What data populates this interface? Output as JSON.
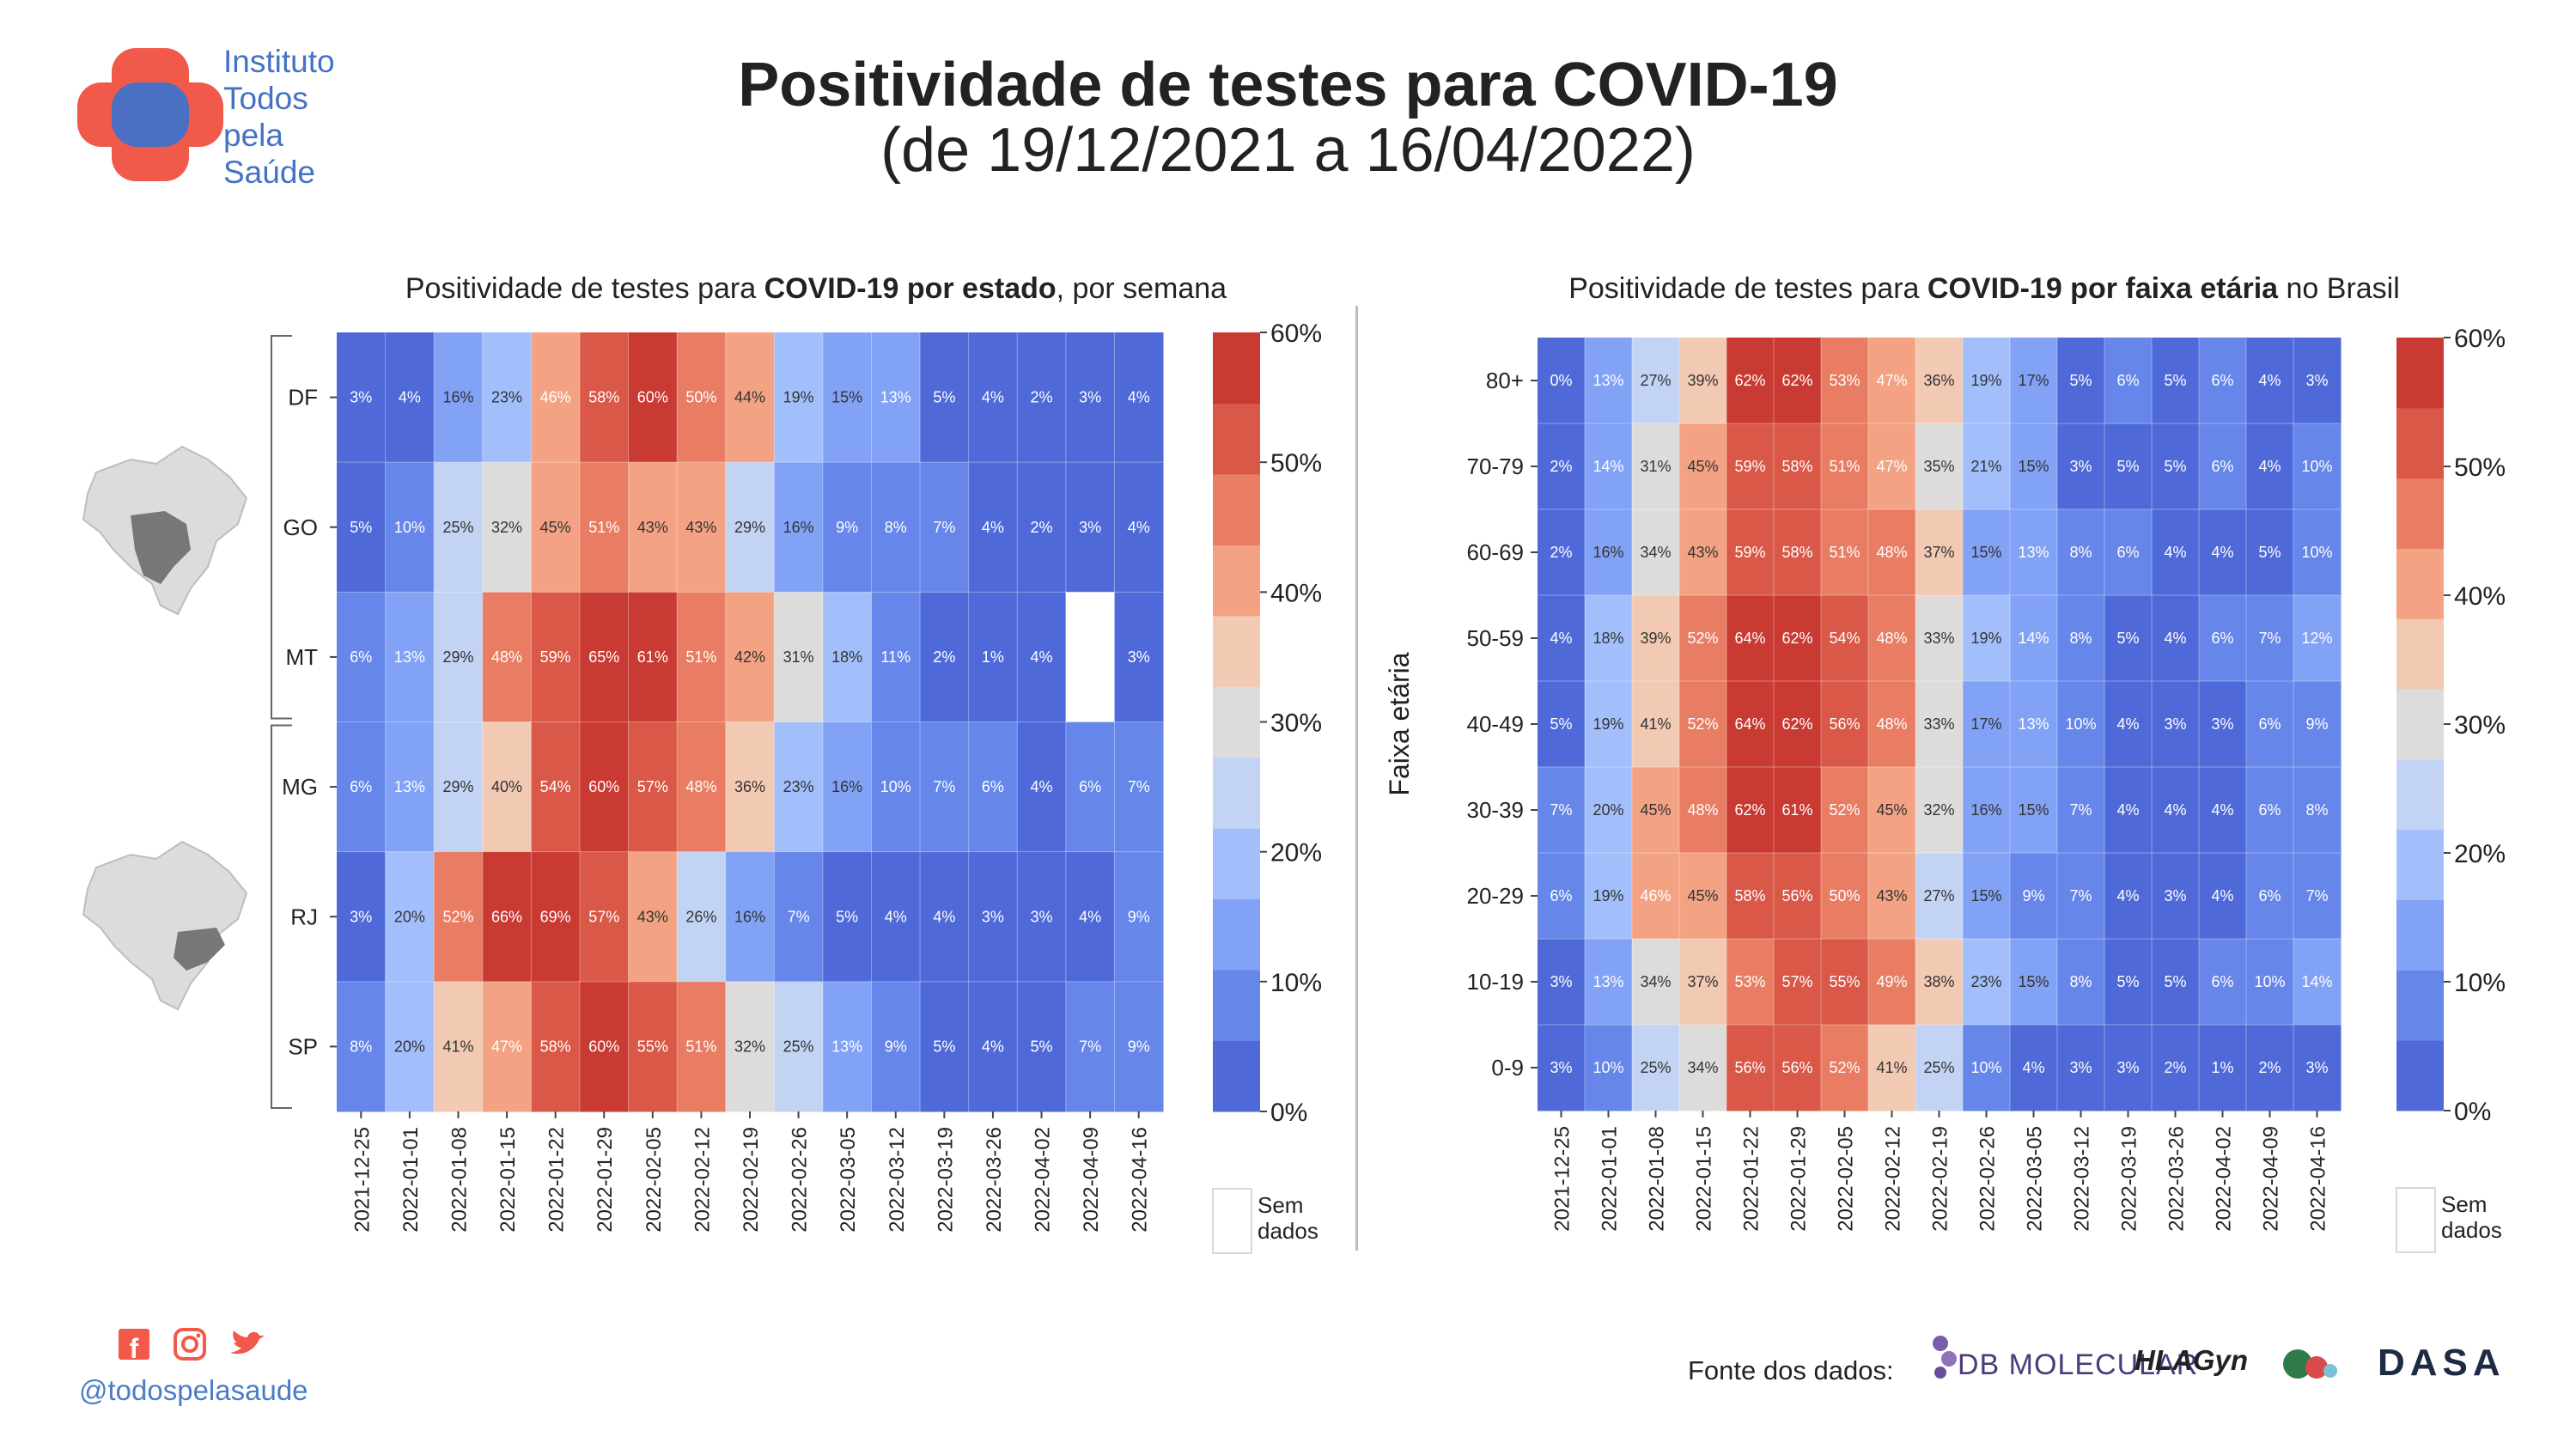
{
  "header": {
    "title": "Positividade de testes para COVID-19",
    "subtitle": "(de 19/12/2021 a 16/04/2022)"
  },
  "logo": {
    "lines": [
      "Instituto",
      "Todos",
      "pela",
      "Saúde"
    ]
  },
  "charts": {
    "left_title_pre": "Positividade de testes para ",
    "left_title_bold": "COVID-19 por estado",
    "left_title_post": ", por semana",
    "right_title_pre": "Positividade de testes para ",
    "right_title_bold": "COVID-19 por faixa etária",
    "right_title_post": " no Brasil"
  },
  "legend": {
    "no_data_line1": "Sem",
    "no_data_line2": "dados"
  },
  "footer": {
    "handle": "@todospelasaude",
    "source_label": "Fonte dos dados:",
    "sources": [
      "DB MOLECULAR",
      "HLAGyn",
      "DASA"
    ]
  },
  "colors": {
    "scale": [
      "#4f6ad8",
      "#6686e9",
      "#82a2f6",
      "#a3bffb",
      "#c3d3f3",
      "#dedcdb",
      "#f2c9b3",
      "#f3a383",
      "#e87d63",
      "#d95847",
      "#c93a33"
    ],
    "no_data": "#ffffff",
    "logo_red": "#f15a4a",
    "logo_blue": "#4a6fc3",
    "accent_blue": "#4472c4"
  },
  "icons": [
    "facebook-icon",
    "instagram-icon",
    "twitter-icon",
    "brazil-map-center-west-icon",
    "brazil-map-southeast-icon"
  ],
  "chart_data": [
    {
      "type": "heatmap",
      "title": "Positividade de testes para COVID-19 por estado, por semana",
      "xlabel": "",
      "ylabel": "",
      "x": [
        "2021-12-25",
        "2022-01-01",
        "2022-01-08",
        "2022-01-15",
        "2022-01-22",
        "2022-01-29",
        "2022-02-05",
        "2022-02-12",
        "2022-02-19",
        "2022-02-26",
        "2022-03-05",
        "2022-03-12",
        "2022-03-19",
        "2022-03-26",
        "2022-04-02",
        "2022-04-09",
        "2022-04-16"
      ],
      "y": [
        "DF",
        "GO",
        "MT",
        "MG",
        "RJ",
        "SP"
      ],
      "groups": [
        [
          "DF",
          "GO",
          "MT"
        ],
        [
          "MG",
          "RJ",
          "SP"
        ]
      ],
      "values": [
        [
          3,
          4,
          16,
          23,
          46,
          58,
          60,
          50,
          44,
          19,
          15,
          13,
          5,
          4,
          2,
          3,
          4
        ],
        [
          5,
          10,
          25,
          32,
          45,
          51,
          43,
          43,
          29,
          16,
          9,
          8,
          7,
          4,
          2,
          3,
          4
        ],
        [
          6,
          13,
          29,
          48,
          59,
          65,
          61,
          51,
          42,
          31,
          18,
          11,
          2,
          1,
          4,
          null,
          3
        ],
        [
          6,
          13,
          29,
          40,
          54,
          60,
          57,
          48,
          36,
          23,
          16,
          10,
          7,
          6,
          4,
          6,
          7
        ],
        [
          3,
          20,
          52,
          66,
          69,
          57,
          43,
          26,
          16,
          7,
          5,
          4,
          4,
          3,
          3,
          4,
          9
        ],
        [
          8,
          20,
          41,
          47,
          58,
          60,
          55,
          51,
          32,
          25,
          13,
          9,
          5,
          4,
          5,
          7,
          9
        ]
      ],
      "colorbar_ticks": [
        "0%",
        "10%",
        "20%",
        "30%",
        "40%",
        "50%",
        "60%"
      ],
      "colorbar_range": [
        0,
        60
      ]
    },
    {
      "type": "heatmap",
      "title": "Positividade de testes para COVID-19 por faixa etária no Brasil",
      "xlabel": "",
      "ylabel": "Faixa etária",
      "x": [
        "2021-12-25",
        "2022-01-01",
        "2022-01-08",
        "2022-01-15",
        "2022-01-22",
        "2022-01-29",
        "2022-02-05",
        "2022-02-12",
        "2022-02-19",
        "2022-02-26",
        "2022-03-05",
        "2022-03-12",
        "2022-03-19",
        "2022-03-26",
        "2022-04-02",
        "2022-04-09",
        "2022-04-16"
      ],
      "y": [
        "80+",
        "70-79",
        "60-69",
        "50-59",
        "40-49",
        "30-39",
        "20-29",
        "10-19",
        "0-9"
      ],
      "values": [
        [
          0,
          13,
          27,
          39,
          62,
          62,
          53,
          47,
          36,
          19,
          17,
          5,
          6,
          5,
          6,
          4,
          3
        ],
        [
          2,
          14,
          31,
          45,
          59,
          58,
          51,
          47,
          35,
          21,
          15,
          3,
          5,
          5,
          6,
          4,
          10
        ],
        [
          2,
          16,
          34,
          43,
          59,
          58,
          51,
          48,
          37,
          15,
          13,
          8,
          6,
          4,
          4,
          5,
          10
        ],
        [
          4,
          18,
          39,
          52,
          64,
          62,
          54,
          48,
          33,
          19,
          14,
          8,
          5,
          4,
          6,
          7,
          12
        ],
        [
          5,
          19,
          41,
          52,
          64,
          62,
          56,
          48,
          33,
          17,
          13,
          10,
          4,
          3,
          3,
          6,
          9
        ],
        [
          7,
          20,
          45,
          48,
          62,
          61,
          52,
          45,
          32,
          16,
          15,
          7,
          4,
          4,
          4,
          6,
          8
        ],
        [
          6,
          19,
          46,
          45,
          58,
          56,
          50,
          43,
          27,
          15,
          9,
          7,
          4,
          3,
          4,
          6,
          7
        ],
        [
          3,
          13,
          34,
          37,
          53,
          57,
          55,
          49,
          38,
          23,
          15,
          8,
          5,
          5,
          6,
          10,
          14
        ],
        [
          3,
          10,
          25,
          34,
          56,
          56,
          52,
          41,
          25,
          10,
          4,
          3,
          3,
          2,
          1,
          2,
          3
        ]
      ],
      "colorbar_ticks": [
        "0%",
        "10%",
        "20%",
        "30%",
        "40%",
        "50%",
        "60%"
      ],
      "colorbar_range": [
        0,
        60
      ]
    }
  ]
}
